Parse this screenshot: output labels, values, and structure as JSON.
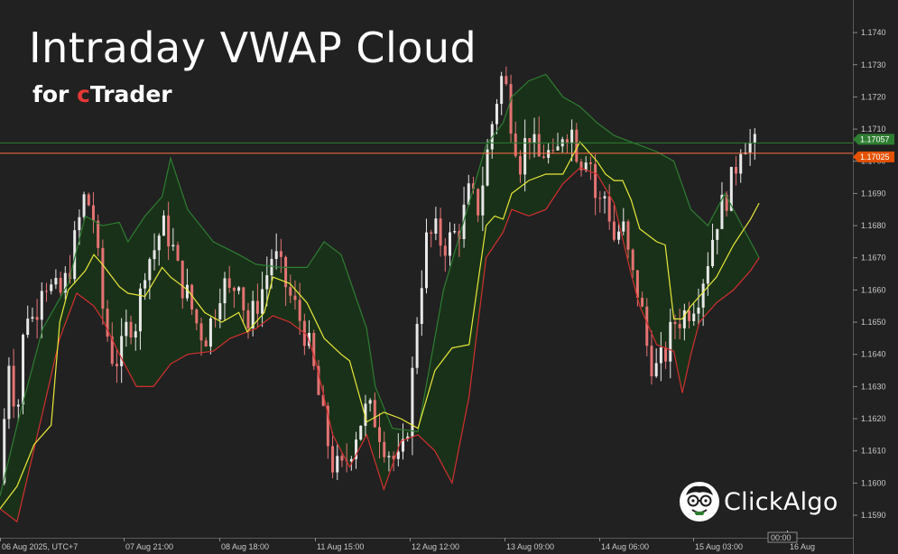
{
  "header": {
    "title": "Intraday VWAP Cloud",
    "subtitle_pre": "for ",
    "subtitle_c": "c",
    "subtitle_post": "Trader"
  },
  "logo": {
    "text": "ClickAlgo"
  },
  "colors": {
    "background": "#212121",
    "candle_up": "#e8e8e8",
    "candle_down": "#e57373",
    "cloud_fill": "#1a3319",
    "cloud_upper": "#2e7d32",
    "vwap_line": "#e8e83a",
    "lower_band": "#d32f2f",
    "bid_line": "#2e7d32",
    "ask_line": "#ff7043"
  },
  "chart_data": {
    "type": "line",
    "title": "",
    "xlabel": "",
    "ylabel": "",
    "ylim": [
      1.1583,
      1.1749
    ],
    "grid": false,
    "x_ticks": [
      "06 Aug 2025, UTC+7",
      "07 Aug 21:00",
      "08 Aug 18:00",
      "11 Aug 15:00",
      "12 Aug 12:00",
      "13 Aug 09:00",
      "14 Aug 06:00",
      "15 Aug 03:00",
      "16 Aug"
    ],
    "y_ticks": [
      "1.1740",
      "1.1730",
      "1.1720",
      "1.1710",
      "1.1700",
      "1.1690",
      "1.1680",
      "1.1670",
      "1.1660",
      "1.1650",
      "1.1640",
      "1.1630",
      "1.1620",
      "1.1610",
      "1.1600",
      "1.1590"
    ],
    "price_tags": [
      {
        "label": "1.17057",
        "value": 1.17057,
        "color": "#2e7d32"
      },
      {
        "label": "1.17025",
        "value": 1.17025,
        "color": "#e65100"
      }
    ],
    "crosshair_label": "00:00",
    "x_range": [
      0,
      100
    ],
    "series": [
      {
        "role": "cloud-upper",
        "x": [
          0,
          2,
          5,
          8,
          10,
          12,
          14,
          15,
          17,
          19,
          20,
          22,
          25,
          28,
          30,
          33,
          36,
          38,
          40,
          43,
          44,
          46,
          49,
          52,
          54,
          57,
          59,
          60,
          62,
          64,
          66,
          68,
          70,
          72,
          75,
          77,
          79,
          81,
          83,
          85,
          87,
          89
        ],
        "y": [
          1.1596,
          1.1618,
          1.1648,
          1.1662,
          1.1683,
          1.168,
          1.1681,
          1.1675,
          1.1683,
          1.1689,
          1.1701,
          1.1685,
          1.1675,
          1.1671,
          1.1668,
          1.1667,
          1.1667,
          1.1675,
          1.1671,
          1.1648,
          1.163,
          1.1617,
          1.1616,
          1.166,
          1.1678,
          1.1705,
          1.1712,
          1.172,
          1.1725,
          1.1727,
          1.172,
          1.1717,
          1.1712,
          1.1708,
          1.1705,
          1.1703,
          1.17,
          1.1685,
          1.168,
          1.169,
          1.168,
          1.167
        ]
      },
      {
        "role": "vwap",
        "x": [
          0,
          2,
          4,
          6,
          7,
          8,
          10,
          11,
          12,
          14,
          15,
          17,
          19,
          20,
          22,
          24,
          26,
          28,
          29,
          31,
          32,
          34,
          36,
          38,
          40,
          41,
          43,
          45,
          47,
          49,
          51,
          53,
          55,
          57,
          58,
          59,
          60,
          62,
          64,
          66,
          68,
          70,
          71,
          72,
          73,
          74,
          75,
          77,
          78,
          79,
          80,
          81,
          82,
          84,
          86,
          88,
          89
        ],
        "y": [
          1.1592,
          1.1599,
          1.1612,
          1.1618,
          1.165,
          1.166,
          1.1666,
          1.1671,
          1.1668,
          1.1661,
          1.1659,
          1.1658,
          1.1667,
          1.1664,
          1.166,
          1.1653,
          1.165,
          1.1653,
          1.1647,
          1.1653,
          1.1664,
          1.1662,
          1.1656,
          1.1645,
          1.164,
          1.1638,
          1.1619,
          1.1622,
          1.162,
          1.1617,
          1.1635,
          1.1642,
          1.1643,
          1.168,
          1.1683,
          1.1682,
          1.169,
          1.1694,
          1.1696,
          1.1696,
          1.1706,
          1.17,
          1.1696,
          1.1694,
          1.1694,
          1.1688,
          1.1679,
          1.1675,
          1.1674,
          1.1651,
          1.1651,
          1.1655,
          1.1658,
          1.1664,
          1.1674,
          1.1682,
          1.1687
        ]
      },
      {
        "role": "lower-band",
        "x": [
          0,
          2,
          5,
          7,
          9,
          11,
          12,
          14,
          16,
          18,
          20,
          22,
          25,
          27,
          30,
          32,
          34,
          36,
          37,
          39,
          41,
          43,
          45,
          47,
          49,
          51,
          53,
          55,
          57,
          59,
          60,
          62,
          64,
          66,
          68,
          70,
          72,
          74,
          75,
          77,
          79,
          80,
          81,
          82,
          84,
          86,
          88,
          89
        ],
        "y": [
          1.1592,
          1.1588,
          1.1622,
          1.1645,
          1.1659,
          1.1655,
          1.1651,
          1.164,
          1.163,
          1.163,
          1.1637,
          1.164,
          1.1641,
          1.1645,
          1.1648,
          1.1652,
          1.165,
          1.1646,
          1.1638,
          1.1615,
          1.1605,
          1.1615,
          1.1598,
          1.1613,
          1.1615,
          1.161,
          1.16,
          1.1627,
          1.167,
          1.1678,
          1.1685,
          1.1683,
          1.1685,
          1.1693,
          1.1698,
          1.1696,
          1.1687,
          1.1665,
          1.1655,
          1.1643,
          1.1641,
          1.1628,
          1.164,
          1.165,
          1.1656,
          1.166,
          1.1666,
          1.167
        ]
      },
      {
        "role": "price-trace",
        "x": [
          0,
          1,
          2,
          3,
          4,
          5,
          6,
          7,
          8,
          9,
          10,
          11,
          12,
          13,
          14,
          15,
          16,
          17,
          18,
          19,
          20,
          21,
          22,
          23,
          24,
          25,
          26,
          27,
          28,
          29,
          30,
          31,
          32,
          33,
          34,
          35,
          36,
          37,
          38,
          39,
          40,
          41,
          42,
          43,
          44,
          45,
          46,
          47,
          48,
          49,
          50,
          51,
          52,
          53,
          54,
          55,
          56,
          57,
          58,
          59,
          60,
          61,
          62,
          63,
          64,
          65,
          66,
          67,
          68,
          69,
          70,
          71,
          72,
          73,
          74,
          75,
          76,
          77,
          78,
          79,
          80,
          81,
          82,
          83,
          84,
          85,
          86,
          87,
          88,
          89
        ],
        "y": [
          1.16,
          1.164,
          1.162,
          1.1655,
          1.165,
          1.1665,
          1.166,
          1.1658,
          1.1665,
          1.1678,
          1.169,
          1.1682,
          1.1655,
          1.164,
          1.1638,
          1.165,
          1.165,
          1.1668,
          1.1672,
          1.168,
          1.1676,
          1.1664,
          1.1658,
          1.165,
          1.1645,
          1.1652,
          1.1663,
          1.1658,
          1.1665,
          1.1648,
          1.1655,
          1.1662,
          1.1672,
          1.1665,
          1.1658,
          1.1652,
          1.1645,
          1.1632,
          1.1618,
          1.1606,
          1.1603,
          1.161,
          1.1618,
          1.1623,
          1.162,
          1.1613,
          1.1608,
          1.1605,
          1.1622,
          1.1655,
          1.1675,
          1.1678,
          1.1674,
          1.1676,
          1.168,
          1.169,
          1.1685,
          1.17,
          1.1717,
          1.1728,
          1.1712,
          1.17,
          1.171,
          1.17,
          1.1704,
          1.1698,
          1.171,
          1.171,
          1.17,
          1.1705,
          1.1685,
          1.169,
          1.1676,
          1.168,
          1.1665,
          1.1658,
          1.164,
          1.1635,
          1.164,
          1.165,
          1.1652,
          1.1655,
          1.166,
          1.167,
          1.1682,
          1.1688,
          1.1695,
          1.1708,
          1.1705,
          1.1703
        ]
      }
    ]
  }
}
